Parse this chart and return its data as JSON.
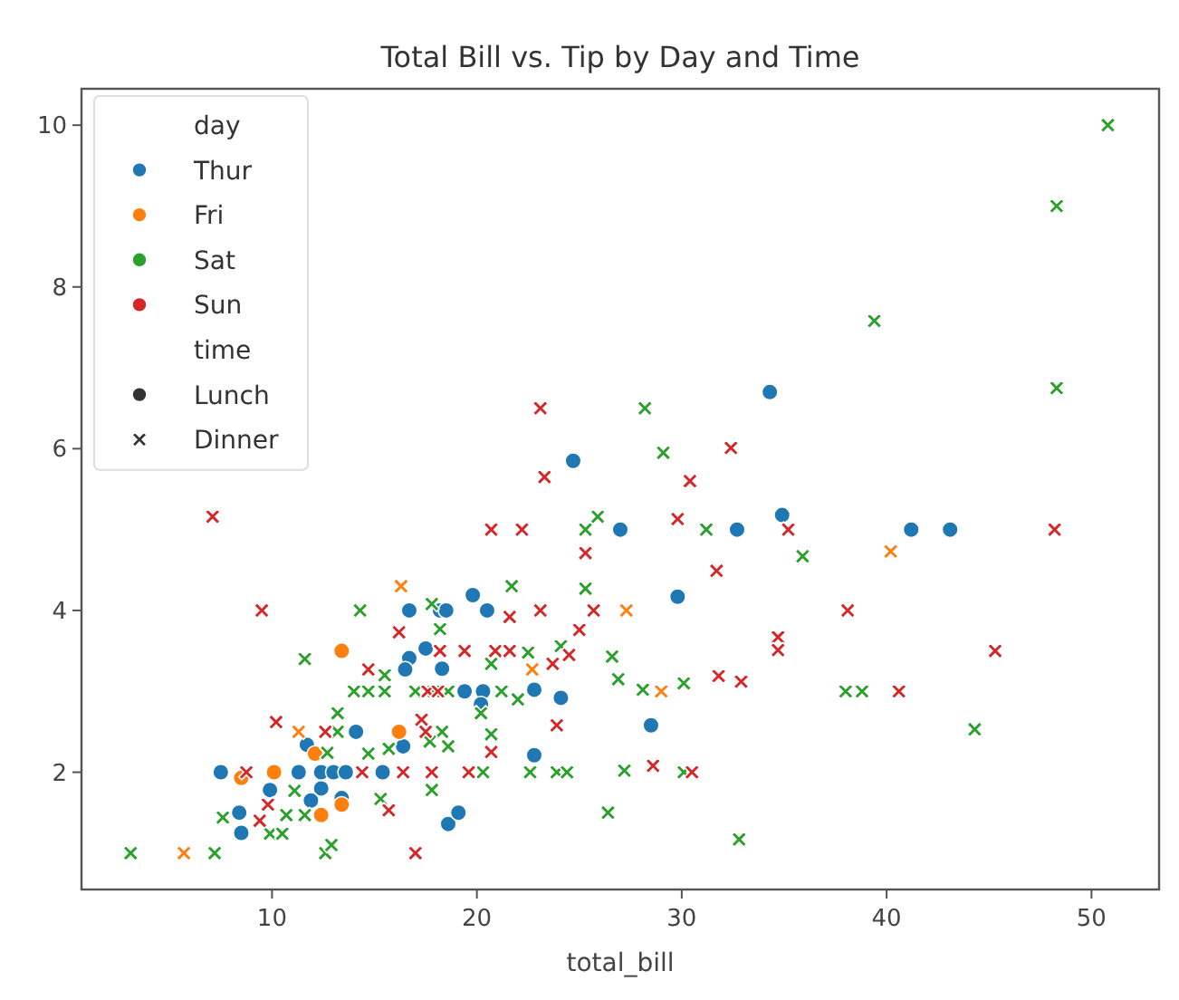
{
  "chart_data": {
    "type": "scatter",
    "title": "Total Bill vs. Tip by Day and Time",
    "xlabel": "total_bill",
    "legend_title": "day",
    "annotations": [
      "time"
    ],
    "legend": "top left",
    "xlim": [
      0.7,
      53.3
    ],
    "ylim": [
      0.55,
      10.45
    ],
    "xticks": [
      10,
      20,
      30,
      40,
      50
    ],
    "yticks": [
      2,
      4,
      6,
      8,
      10
    ],
    "grid": false,
    "series": [
      {
        "name": "Thur",
        "color": "#1f77b4",
        "marker": "circle",
        "x": [
          34.9,
          27.0,
          32.7,
          41.2,
          43.1,
          29.8,
          28.5,
          34.3,
          24.7,
          19.8,
          16.7,
          18.2,
          18.5,
          20.5,
          16.7,
          17.5,
          16.5,
          18.3,
          19.4,
          20.3,
          22.8,
          24.1,
          20.2,
          14.1,
          11.7,
          16.4,
          22.8,
          7.5,
          11.3,
          12.4,
          13.0,
          13.6,
          15.4,
          9.9,
          8.4,
          8.5,
          12.4,
          11.9,
          13.4,
          18.6,
          19.1
        ],
        "values": [
          5.18,
          5.0,
          5.0,
          5.0,
          5.0,
          4.17,
          2.58,
          6.7,
          5.85,
          4.19,
          4.0,
          4.0,
          4.0,
          4.0,
          3.41,
          3.53,
          3.27,
          3.28,
          3.0,
          3.0,
          3.02,
          2.92,
          2.84,
          2.5,
          2.34,
          2.32,
          2.21,
          2.0,
          2.0,
          2.0,
          2.0,
          2.0,
          2.0,
          1.78,
          1.5,
          1.25,
          1.8,
          1.65,
          1.68,
          1.36,
          1.5
        ]
      },
      {
        "name": "Fri",
        "color": "#ff7f0e",
        "marker": "cross",
        "x": [
          16.3,
          22.7,
          11.3,
          5.7,
          40.2,
          27.3,
          29.0
        ],
        "values": [
          4.3,
          3.27,
          2.5,
          1.0,
          4.73,
          4.0,
          3.0
        ]
      },
      {
        "color": "#ff7f0e",
        "marker": "circle",
        "x": [
          13.4,
          16.2,
          12.1,
          10.1,
          8.5,
          13.4,
          12.4
        ],
        "values": [
          3.5,
          2.5,
          2.23,
          2.0,
          1.93,
          1.6,
          1.47
        ]
      },
      {
        "name": "Sat",
        "color": "#2ca02c",
        "marker": "cross",
        "x": [
          50.8,
          48.3,
          39.4,
          48.3,
          28.2,
          29.1,
          25.3,
          25.9,
          31.2,
          35.9,
          25.3,
          26.6,
          26.9,
          28.1,
          30.1,
          38.0,
          38.8,
          44.3,
          27.2,
          30.1,
          26.4,
          32.8,
          21.7,
          14.3,
          17.8,
          18.2,
          11.6,
          22.5,
          24.1,
          15.5,
          20.7,
          14.0,
          14.7,
          15.5,
          17.0,
          17.9,
          18.6,
          21.2,
          22.0,
          20.2,
          13.2,
          13.2,
          18.3,
          17.7,
          18.6,
          20.7,
          12.7,
          14.7,
          15.7,
          20.3,
          22.6,
          23.9,
          24.4,
          7.6,
          11.1,
          10.7,
          11.6,
          9.9,
          10.5,
          15.3,
          17.8,
          3.1,
          7.2,
          12.6,
          12.9
        ],
        "values": [
          10.0,
          9.0,
          7.58,
          6.75,
          6.5,
          5.95,
          5.0,
          5.16,
          5.0,
          4.67,
          4.27,
          3.43,
          3.15,
          3.02,
          3.1,
          3.0,
          3.0,
          2.53,
          2.02,
          2.0,
          1.5,
          1.17,
          4.3,
          4.0,
          4.08,
          3.77,
          3.4,
          3.48,
          3.56,
          3.2,
          3.34,
          3.0,
          3.0,
          3.0,
          3.0,
          3.0,
          3.0,
          3.0,
          2.9,
          2.73,
          2.73,
          2.5,
          2.5,
          2.38,
          2.32,
          2.47,
          2.24,
          2.23,
          2.29,
          2.0,
          2.0,
          2.0,
          2.0,
          1.44,
          1.77,
          1.47,
          1.47,
          1.24,
          1.24,
          1.67,
          1.78,
          1.0,
          1.0,
          1.0,
          1.1
        ]
      },
      {
        "name": "Sun",
        "color": "#d62728",
        "marker": "cross",
        "x": [
          48.2,
          29.8,
          35.2,
          31.7,
          25.3,
          25.7,
          38.1,
          25.0,
          34.7,
          34.7,
          45.3,
          31.8,
          32.9,
          40.6,
          28.6,
          30.5,
          32.4,
          30.4,
          23.1,
          23.3,
          7.1,
          20.7,
          22.2,
          9.5,
          21.6,
          23.1,
          16.2,
          18.2,
          19.4,
          20.9,
          21.6,
          24.5,
          14.7,
          23.7,
          17.3,
          23.9,
          10.2,
          12.6,
          17.5,
          20.7,
          8.75,
          14.4,
          16.4,
          17.8,
          19.6,
          9.8,
          9.4,
          15.7,
          17.0,
          17.6,
          18.1
        ],
        "values": [
          5.0,
          5.13,
          5.0,
          4.49,
          4.71,
          4.0,
          4.0,
          3.76,
          3.67,
          3.51,
          3.5,
          3.19,
          3.12,
          3.0,
          2.08,
          2.0,
          6.01,
          5.6,
          6.5,
          5.65,
          5.16,
          5.0,
          5.0,
          4.0,
          3.92,
          4.0,
          3.73,
          3.5,
          3.5,
          3.5,
          3.5,
          3.45,
          3.27,
          3.34,
          2.65,
          2.58,
          2.62,
          2.5,
          2.5,
          2.25,
          2.0,
          2.0,
          2.0,
          2.0,
          2.0,
          1.6,
          1.4,
          1.53,
          1.0,
          3.0,
          3.0
        ]
      },
      {
        "name": "Lunch",
        "color": "#333333",
        "marker": "circle"
      },
      {
        "name": "Dinner",
        "color": "#333333",
        "marker": "cross"
      }
    ]
  }
}
